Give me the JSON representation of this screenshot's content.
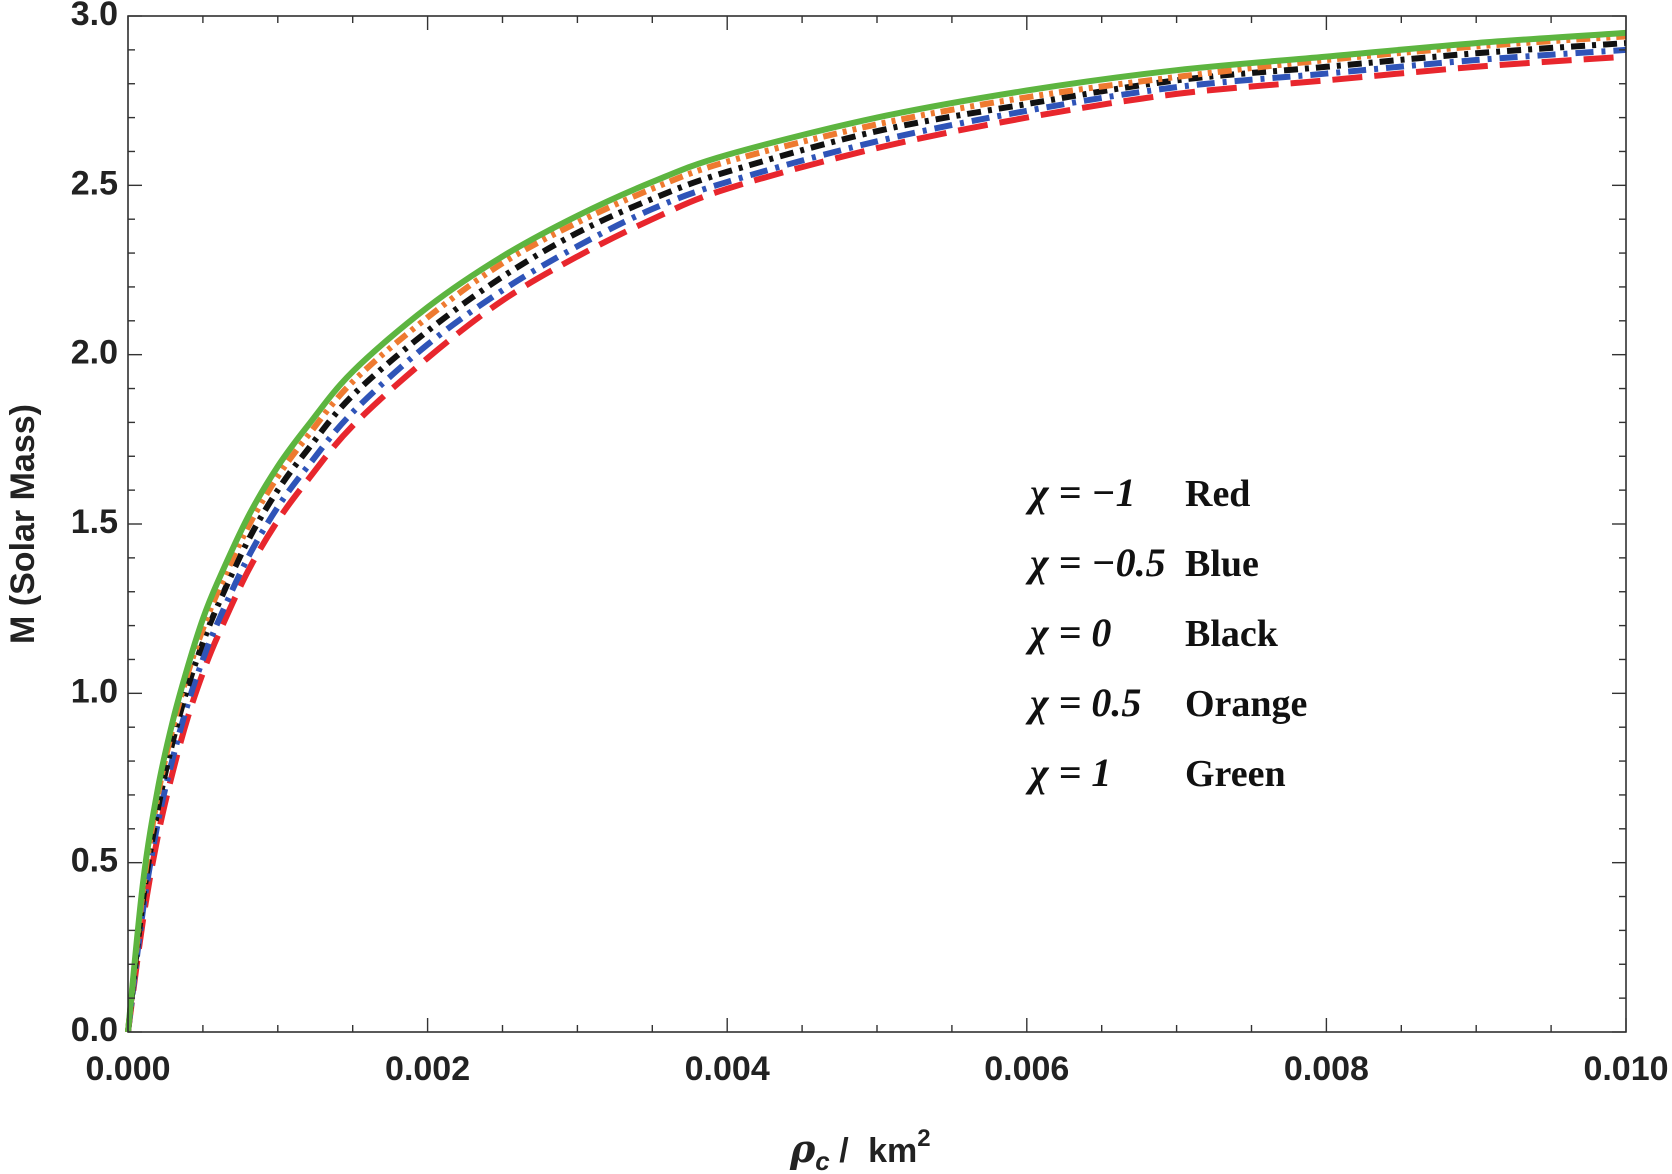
{
  "chart_data": {
    "type": "line",
    "title": "",
    "xlabel": {
      "symbol": "ρ",
      "subscript": "c",
      "unit": "km",
      "exponent": "2"
    },
    "ylabel": "M  (Solar  Mass)",
    "xlim": [
      0,
      0.01
    ],
    "ylim": [
      0,
      3.0
    ],
    "x_ticks": [
      "0.000",
      "0.002",
      "0.004",
      "0.006",
      "0.008",
      "0.010"
    ],
    "y_ticks": [
      "0.0",
      "0.5",
      "1.0",
      "1.5",
      "2.0",
      "2.5",
      "3.0"
    ],
    "grid": false,
    "legend_position": "center-right",
    "x": [
      0,
      0.0001,
      0.0002,
      0.0003,
      0.0004,
      0.0005,
      0.0006,
      0.0008,
      0.001,
      0.0012,
      0.0015,
      0.002,
      0.0025,
      0.003,
      0.0035,
      0.004,
      0.005,
      0.006,
      0.007,
      0.008,
      0.009,
      0.01
    ],
    "series": [
      {
        "name": "Red",
        "chi": "-1",
        "color": "#e8262d",
        "dash": "30,12",
        "values": [
          0,
          0.33,
          0.58,
          0.77,
          0.93,
          1.06,
          1.17,
          1.36,
          1.51,
          1.63,
          1.79,
          1.99,
          2.16,
          2.29,
          2.4,
          2.49,
          2.61,
          2.7,
          2.77,
          2.81,
          2.85,
          2.88
        ]
      },
      {
        "name": "Blue",
        "chi": "-0.5",
        "color": "#2f54b8",
        "dash": "18,8,4,8",
        "values": [
          0,
          0.36,
          0.62,
          0.81,
          0.97,
          1.1,
          1.21,
          1.4,
          1.55,
          1.67,
          1.83,
          2.03,
          2.19,
          2.32,
          2.43,
          2.51,
          2.63,
          2.72,
          2.79,
          2.83,
          2.87,
          2.9
        ]
      },
      {
        "name": "Black",
        "chi": "0",
        "color": "#111111",
        "dash": "14,7,4,7",
        "values": [
          0,
          0.39,
          0.66,
          0.86,
          1.02,
          1.15,
          1.26,
          1.45,
          1.6,
          1.72,
          1.88,
          2.07,
          2.23,
          2.36,
          2.46,
          2.54,
          2.66,
          2.74,
          2.81,
          2.85,
          2.89,
          2.92
        ]
      },
      {
        "name": "Orange",
        "chi": "0.5",
        "color": "#ee7a30",
        "dash": "14,6,4,6,4,6",
        "values": [
          0,
          0.42,
          0.7,
          0.9,
          1.06,
          1.19,
          1.3,
          1.49,
          1.64,
          1.76,
          1.92,
          2.11,
          2.27,
          2.39,
          2.49,
          2.57,
          2.68,
          2.76,
          2.82,
          2.87,
          2.91,
          2.94
        ]
      },
      {
        "name": "Green",
        "chi": "1",
        "color": "#5db540",
        "dash": "",
        "values": [
          0,
          0.44,
          0.72,
          0.92,
          1.08,
          1.22,
          1.33,
          1.52,
          1.67,
          1.79,
          1.95,
          2.14,
          2.29,
          2.41,
          2.51,
          2.59,
          2.7,
          2.78,
          2.84,
          2.88,
          2.92,
          2.95
        ]
      }
    ],
    "legend": [
      {
        "chi": "χ = −1",
        "label": "Red"
      },
      {
        "chi": "χ = −0.5",
        "label": "Blue"
      },
      {
        "chi": "χ = 0",
        "label": "Black"
      },
      {
        "chi": "χ = 0.5",
        "label": "Orange"
      },
      {
        "chi": "χ = 1",
        "label": "Green"
      }
    ]
  }
}
